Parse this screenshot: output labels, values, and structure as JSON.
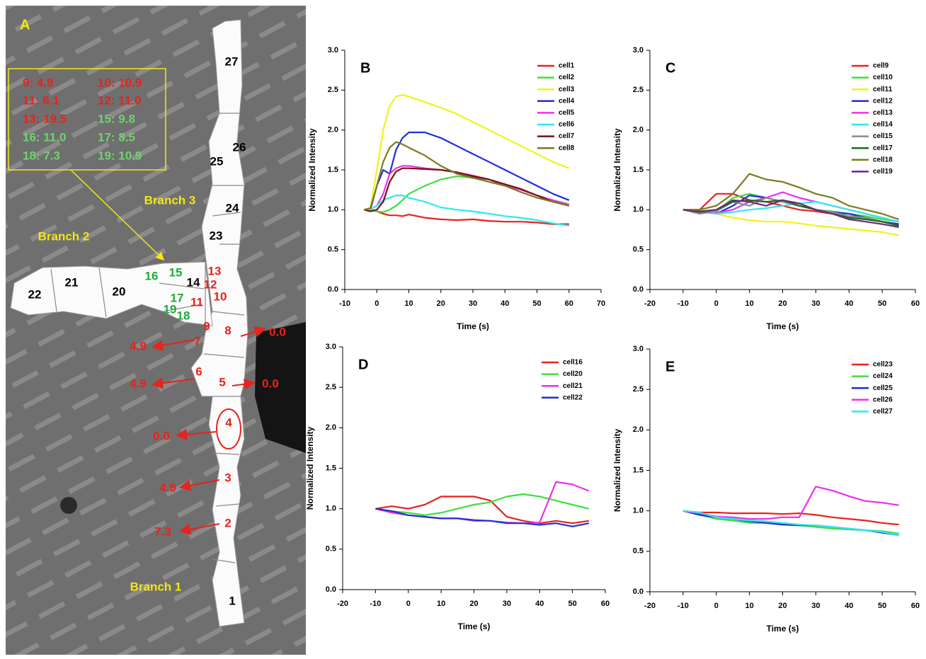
{
  "panel_a": {
    "letter": "A",
    "box": [
      {
        "text": "9:  4.9",
        "color": "#e8221c"
      },
      {
        "text": "10: 10.9",
        "color": "#e8221c"
      },
      {
        "text": "11:  6.1",
        "color": "#e8221c"
      },
      {
        "text": "12: 11.0",
        "color": "#e8221c"
      },
      {
        "text": "13: 19.5",
        "color": "#e8221c"
      },
      {
        "text": "15: 9.8",
        "color": "#6fd36f"
      },
      {
        "text": "16: 11.0",
        "color": "#6fd36f"
      },
      {
        "text": "17: 8.5",
        "color": "#6fd36f"
      },
      {
        "text": "18: 7.3",
        "color": "#6fd36f"
      },
      {
        "text": "19: 10.9",
        "color": "#6fd36f"
      }
    ],
    "branches": [
      "Branch 1",
      "Branch 2",
      "Branch 3"
    ],
    "cells": [
      {
        "label": "1",
        "color": "#000000"
      },
      {
        "label": "2",
        "color": "#e8221c"
      },
      {
        "label": "3",
        "color": "#e8221c"
      },
      {
        "label": "4",
        "color": "#e8221c"
      },
      {
        "label": "5",
        "color": "#e8221c"
      },
      {
        "label": "6",
        "color": "#e8221c"
      },
      {
        "label": "7",
        "color": "#e8221c"
      },
      {
        "label": "8",
        "color": "#e8221c"
      },
      {
        "label": "9",
        "color": "#e8221c"
      },
      {
        "label": "10",
        "color": "#e8221c"
      },
      {
        "label": "11",
        "color": "#e8221c"
      },
      {
        "label": "12",
        "color": "#e8221c"
      },
      {
        "label": "13",
        "color": "#e8221c"
      },
      {
        "label": "14",
        "color": "#000000"
      },
      {
        "label": "15",
        "color": "#1faa3c"
      },
      {
        "label": "16",
        "color": "#1faa3c"
      },
      {
        "label": "17",
        "color": "#1faa3c"
      },
      {
        "label": "18",
        "color": "#1faa3c"
      },
      {
        "label": "19",
        "color": "#1faa3c"
      },
      {
        "label": "20",
        "color": "#000000"
      },
      {
        "label": "21",
        "color": "#000000"
      },
      {
        "label": "22",
        "color": "#000000"
      },
      {
        "label": "23",
        "color": "#000000"
      },
      {
        "label": "24",
        "color": "#000000"
      },
      {
        "label": "25",
        "color": "#000000"
      },
      {
        "label": "26",
        "color": "#000000"
      },
      {
        "label": "27",
        "color": "#000000"
      }
    ],
    "arrows": [
      "4.9",
      "0.0",
      "4.9",
      "0.0",
      "0.0",
      "4.9",
      "7.3"
    ]
  },
  "chart_data": [
    {
      "type": "line",
      "title": "B",
      "xlabel": "Time (s)",
      "ylabel": "Normalized Intensity",
      "x": [
        -4,
        -2,
        0,
        2,
        4,
        6,
        8,
        10,
        15,
        20,
        25,
        30,
        35,
        40,
        45,
        50,
        55,
        60
      ],
      "xlim": [
        -10,
        70
      ],
      "xticks": [
        -10,
        0,
        10,
        20,
        30,
        40,
        50,
        60,
        70
      ],
      "ylim": [
        0,
        3
      ],
      "yticks": [
        {
          "value": 0,
          "label": "0.0"
        },
        0.5,
        {
          "value": 1,
          "label": "1.0"
        },
        1.5,
        {
          "value": 2,
          "label": "2.0"
        },
        2.5,
        {
          "value": 3,
          "label": "3.0"
        }
      ],
      "legend": "upper right",
      "series": [
        {
          "name": "cell1",
          "color": "#e8221c",
          "values": [
            1.0,
            1.0,
            0.98,
            0.95,
            0.93,
            0.93,
            0.92,
            0.94,
            0.9,
            0.88,
            0.87,
            0.88,
            0.86,
            0.85,
            0.85,
            0.84,
            0.82,
            0.82
          ]
        },
        {
          "name": "cell2",
          "color": "#3ee03e",
          "values": [
            1.0,
            1.0,
            0.98,
            0.97,
            1.0,
            1.05,
            1.12,
            1.2,
            1.3,
            1.38,
            1.42,
            1.4,
            1.38,
            1.32,
            1.25,
            1.18,
            1.12,
            1.07
          ]
        },
        {
          "name": "cell3",
          "color": "#f2f21a",
          "values": [
            1.0,
            1.02,
            1.5,
            2.0,
            2.3,
            2.42,
            2.44,
            2.42,
            2.35,
            2.28,
            2.2,
            2.1,
            2.0,
            1.9,
            1.8,
            1.7,
            1.6,
            1.52
          ]
        },
        {
          "name": "cell4",
          "color": "#1f2fd6",
          "values": [
            1.0,
            1.0,
            1.3,
            1.5,
            1.45,
            1.75,
            1.9,
            1.97,
            1.97,
            1.9,
            1.8,
            1.7,
            1.6,
            1.5,
            1.4,
            1.3,
            1.2,
            1.12
          ]
        },
        {
          "name": "cell5",
          "color": "#ee2fee",
          "values": [
            1.0,
            1.0,
            1.05,
            1.2,
            1.45,
            1.52,
            1.55,
            1.55,
            1.52,
            1.5,
            1.47,
            1.43,
            1.38,
            1.3,
            1.25,
            1.18,
            1.12,
            1.06
          ]
        },
        {
          "name": "cell6",
          "color": "#2fe8ee",
          "values": [
            1.0,
            1.0,
            1.05,
            1.12,
            1.15,
            1.18,
            1.18,
            1.15,
            1.1,
            1.03,
            1.0,
            0.98,
            0.95,
            0.92,
            0.9,
            0.87,
            0.83,
            0.8
          ]
        },
        {
          "name": "cell7",
          "color": "#7a1010",
          "values": [
            1.0,
            0.98,
            1.0,
            1.1,
            1.35,
            1.48,
            1.52,
            1.52,
            1.51,
            1.5,
            1.47,
            1.42,
            1.38,
            1.32,
            1.26,
            1.18,
            1.1,
            1.05
          ]
        },
        {
          "name": "cell8",
          "color": "#7d7a1e",
          "values": [
            1.0,
            1.02,
            1.3,
            1.6,
            1.78,
            1.85,
            1.82,
            1.78,
            1.68,
            1.55,
            1.45,
            1.4,
            1.35,
            1.3,
            1.22,
            1.15,
            1.1,
            1.05
          ]
        }
      ]
    },
    {
      "type": "line",
      "title": "C",
      "xlabel": "Time (s)",
      "ylabel": "Normalized Intensity",
      "x": [
        -10,
        -5,
        0,
        5,
        10,
        15,
        20,
        25,
        30,
        35,
        40,
        45,
        50,
        55
      ],
      "xlim": [
        -20,
        60
      ],
      "xticks": [
        -20,
        -10,
        0,
        10,
        20,
        30,
        40,
        50,
        60
      ],
      "ylim": [
        0,
        3
      ],
      "yticks": [
        {
          "value": 0,
          "label": "0.0"
        },
        0.5,
        {
          "value": 1,
          "label": "1.0"
        },
        1.5,
        {
          "value": 2,
          "label": "2.0"
        },
        2.5,
        {
          "value": 3,
          "label": "3.0"
        }
      ],
      "legend": "upper right",
      "series": [
        {
          "name": "cell9",
          "color": "#e8221c",
          "values": [
            1.0,
            1.0,
            1.2,
            1.2,
            1.12,
            1.1,
            1.05,
            1.0,
            0.98,
            0.95,
            0.92,
            0.9,
            0.85,
            0.82
          ]
        },
        {
          "name": "cell10",
          "color": "#3ee03e",
          "values": [
            1.0,
            0.98,
            0.97,
            1.15,
            1.2,
            1.15,
            1.1,
            1.05,
            1.0,
            0.98,
            0.95,
            0.92,
            0.88,
            0.85
          ]
        },
        {
          "name": "cell11",
          "color": "#f2f21a",
          "values": [
            1.0,
            0.98,
            0.95,
            0.9,
            0.87,
            0.85,
            0.85,
            0.83,
            0.8,
            0.78,
            0.76,
            0.74,
            0.72,
            0.68
          ]
        },
        {
          "name": "cell12",
          "color": "#1f2fd6",
          "values": [
            1.0,
            0.98,
            0.95,
            1.05,
            1.18,
            1.15,
            1.1,
            1.05,
            1.0,
            0.97,
            0.95,
            0.9,
            0.85,
            0.82
          ]
        },
        {
          "name": "cell13",
          "color": "#ee2fee",
          "values": [
            1.0,
            0.97,
            0.96,
            1.0,
            1.1,
            1.15,
            1.22,
            1.15,
            1.1,
            1.05,
            1.0,
            0.95,
            0.9,
            0.85
          ]
        },
        {
          "name": "cell14",
          "color": "#2fe8ee",
          "values": [
            1.0,
            0.98,
            0.95,
            0.97,
            1.0,
            1.02,
            1.05,
            1.08,
            1.1,
            1.05,
            1.0,
            0.95,
            0.9,
            0.85
          ]
        },
        {
          "name": "cell15",
          "color": "#8c8c8c",
          "values": [
            1.0,
            0.95,
            0.98,
            1.1,
            1.05,
            1.15,
            1.1,
            1.05,
            1.0,
            0.97,
            0.92,
            0.9,
            0.85,
            0.8
          ]
        },
        {
          "name": "cell17",
          "color": "#1b6b1b",
          "values": [
            1.0,
            0.98,
            1.0,
            1.1,
            1.12,
            1.1,
            1.12,
            1.05,
            1.0,
            0.95,
            0.9,
            0.88,
            0.85,
            0.8
          ]
        },
        {
          "name": "cell18",
          "color": "#7d7a1e",
          "values": [
            1.0,
            1.0,
            1.05,
            1.2,
            1.45,
            1.38,
            1.35,
            1.28,
            1.2,
            1.15,
            1.05,
            1.0,
            0.95,
            0.88
          ]
        },
        {
          "name": "cell19",
          "color": "#6b2a7a",
          "values": [
            1.0,
            0.97,
            1.0,
            1.12,
            1.1,
            1.05,
            1.12,
            1.08,
            1.0,
            0.95,
            0.88,
            0.85,
            0.82,
            0.78
          ]
        }
      ]
    },
    {
      "type": "line",
      "title": "D",
      "xlabel": "Time (s)",
      "ylabel": "Normalized Intensity",
      "x": [
        -10,
        -5,
        0,
        5,
        10,
        15,
        20,
        25,
        30,
        35,
        40,
        45,
        50,
        55
      ],
      "xlim": [
        -20,
        60
      ],
      "xticks": [
        -20,
        -10,
        0,
        10,
        20,
        30,
        40,
        50,
        60
      ],
      "ylim": [
        0,
        3
      ],
      "yticks": [
        {
          "value": 0,
          "label": "0.0"
        },
        0.5,
        {
          "value": 1,
          "label": "1.0"
        },
        1.5,
        {
          "value": 2,
          "label": "2.0"
        },
        2.5,
        {
          "value": 3,
          "label": "3.0"
        }
      ],
      "legend": "upper right",
      "series": [
        {
          "name": "cell16",
          "color": "#e8221c",
          "values": [
            1.0,
            1.03,
            1.0,
            1.05,
            1.15,
            1.15,
            1.15,
            1.1,
            0.9,
            0.85,
            0.82,
            0.85,
            0.82,
            0.85
          ]
        },
        {
          "name": "cell20",
          "color": "#3ee03e",
          "values": [
            1.0,
            0.97,
            0.95,
            0.92,
            0.95,
            1.0,
            1.05,
            1.08,
            1.15,
            1.18,
            1.15,
            1.1,
            1.05,
            1.0
          ]
        },
        {
          "name": "cell21",
          "color": "#ee2fee",
          "values": [
            1.0,
            0.95,
            0.92,
            0.9,
            0.88,
            0.88,
            0.85,
            0.85,
            0.83,
            0.82,
            0.83,
            1.33,
            1.3,
            1.22
          ]
        },
        {
          "name": "cell22",
          "color": "#1f2fd6",
          "values": [
            1.0,
            0.97,
            0.92,
            0.9,
            0.88,
            0.88,
            0.86,
            0.85,
            0.82,
            0.82,
            0.8,
            0.82,
            0.78,
            0.82
          ]
        }
      ]
    },
    {
      "type": "line",
      "title": "E",
      "xlabel": "Time (s)",
      "ylabel": "Normalized Intensity",
      "x": [
        -10,
        -5,
        0,
        5,
        10,
        15,
        20,
        25,
        30,
        35,
        40,
        45,
        50,
        55
      ],
      "xlim": [
        -20,
        60
      ],
      "xticks": [
        -20,
        -10,
        0,
        10,
        20,
        30,
        40,
        50,
        60
      ],
      "ylim": [
        0,
        3
      ],
      "yticks": [
        {
          "value": 0,
          "label": "0.0"
        },
        0.5,
        {
          "value": 1,
          "label": "1.0"
        },
        1.5,
        {
          "value": 2,
          "label": "2.0"
        },
        2.5,
        {
          "value": 3,
          "label": "3.0"
        }
      ],
      "legend": "upper right",
      "series": [
        {
          "name": "cell23",
          "color": "#e8221c",
          "values": [
            1.0,
            0.98,
            0.98,
            0.97,
            0.97,
            0.97,
            0.96,
            0.97,
            0.95,
            0.92,
            0.9,
            0.88,
            0.85,
            0.83
          ]
        },
        {
          "name": "cell24",
          "color": "#3ee03e",
          "values": [
            1.0,
            0.95,
            0.9,
            0.88,
            0.85,
            0.85,
            0.83,
            0.82,
            0.8,
            0.78,
            0.77,
            0.76,
            0.75,
            0.72
          ]
        },
        {
          "name": "cell25",
          "color": "#1f2fd6",
          "values": [
            1.0,
            0.95,
            0.92,
            0.9,
            0.87,
            0.85,
            0.83,
            0.82,
            0.82,
            0.8,
            0.78,
            0.76,
            0.73,
            0.7
          ]
        },
        {
          "name": "cell26",
          "color": "#ee2fee",
          "values": [
            1.0,
            0.97,
            0.93,
            0.92,
            0.9,
            0.9,
            0.92,
            0.92,
            1.3,
            1.25,
            1.18,
            1.12,
            1.1,
            1.07
          ]
        },
        {
          "name": "cell27",
          "color": "#2fe8ee",
          "values": [
            1.0,
            0.98,
            0.92,
            0.9,
            0.88,
            0.87,
            0.85,
            0.83,
            0.82,
            0.8,
            0.78,
            0.76,
            0.74,
            0.7
          ]
        }
      ]
    }
  ]
}
